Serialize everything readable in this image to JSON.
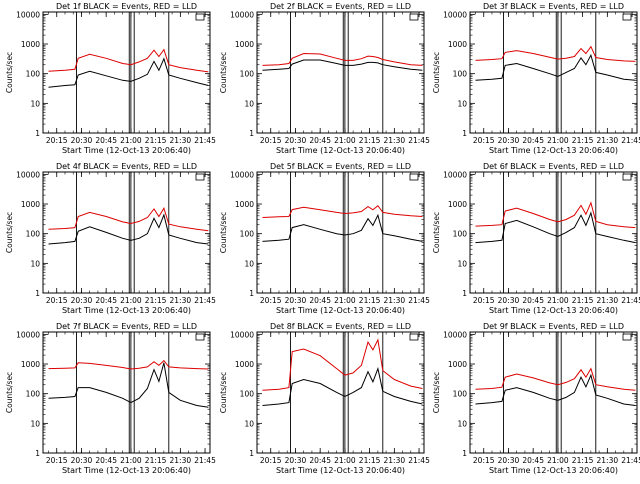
{
  "figure": {
    "panel_titles": [
      "Det 1f BLACK = Events, RED = LLD",
      "Det 2f BLACK = Events, RED = LLD",
      "Det 3f BLACK = Events, RED = LLD",
      "Det 4f BLACK = Events, RED = LLD",
      "Det 5f BLACK = Events, RED = LLD",
      "Det 6f BLACK = Events, RED = LLD",
      "Det 7f BLACK = Events, RED = LLD",
      "Det 8f BLACK = Events, RED = LLD",
      "Det 9f BLACK = Events, RED = LLD"
    ],
    "xlabel": "Start Time (12-Oct-13 20:06:40)",
    "ylabel": "Counts/sec",
    "colors": {
      "events": "#000000",
      "lld": "#dd0000",
      "axes": "#000000",
      "background": "#ffffff"
    }
  },
  "chart_data": {
    "type": "line",
    "yscale": "log",
    "xlabel": "Start Time (12-Oct-13 20:06:40)",
    "ylabel": "Counts/sec",
    "x_ticks": [
      "20:15",
      "20:30",
      "20:45",
      "21:00",
      "21:15",
      "21:30",
      "21:45"
    ],
    "y_ticks": [
      "1",
      "10",
      "100",
      "1000",
      "10000"
    ],
    "ylim": [
      1,
      12000
    ],
    "xlim": [
      "20:06:40",
      "21:48:00"
    ],
    "vertical_lines": [
      "20:27",
      "20:59",
      "21:00",
      "21:02",
      "21:23"
    ],
    "x": [
      "20:10",
      "20:20",
      "20:26",
      "20:28",
      "20:35",
      "20:45",
      "20:55",
      "21:00",
      "21:05",
      "21:10",
      "21:14",
      "21:17",
      "21:20",
      "21:23",
      "21:30",
      "21:40",
      "21:47"
    ],
    "panels": [
      {
        "title": "Det 1f BLACK = Events, RED = LLD",
        "series": [
          {
            "name": "BLACK = Events",
            "values": [
              35,
              40,
              42,
              90,
              120,
              85,
              60,
              55,
              70,
              95,
              260,
              130,
              320,
              90,
              70,
              50,
              40
            ]
          },
          {
            "name": "RED = LLD",
            "values": [
              120,
              130,
              140,
              330,
              450,
              330,
              220,
              200,
              250,
              330,
              620,
              380,
              650,
              200,
              160,
              130,
              115
            ]
          }
        ]
      },
      {
        "title": "Det 2f BLACK = Events, RED = LLD",
        "series": [
          {
            "name": "BLACK = Events",
            "values": [
              130,
              140,
              150,
              210,
              290,
              290,
              220,
              190,
              190,
              210,
              240,
              240,
              230,
              200,
              170,
              140,
              130
            ]
          },
          {
            "name": "RED = LLD",
            "values": [
              190,
              200,
              220,
              330,
              480,
              460,
              330,
              280,
              280,
              320,
              390,
              380,
              350,
              300,
              250,
              200,
              190
            ]
          }
        ]
      },
      {
        "title": "Det 3f BLACK = Events, RED = LLD",
        "series": [
          {
            "name": "BLACK = Events",
            "values": [
              60,
              65,
              70,
              190,
              220,
              150,
              100,
              80,
              110,
              150,
              340,
              200,
              420,
              110,
              90,
              65,
              60
            ]
          },
          {
            "name": "RED = LLD",
            "values": [
              280,
              300,
              320,
              520,
              600,
              480,
              360,
              310,
              330,
              380,
              700,
              480,
              820,
              350,
              300,
              270,
              260
            ]
          }
        ]
      },
      {
        "title": "Det 4f BLACK = Events, RED = LLD",
        "series": [
          {
            "name": "BLACK = Events",
            "values": [
              45,
              50,
              55,
              120,
              170,
              110,
              70,
              60,
              70,
              100,
              330,
              160,
              430,
              90,
              70,
              50,
              45
            ]
          },
          {
            "name": "RED = LLD",
            "values": [
              140,
              150,
              160,
              380,
              520,
              380,
              250,
              220,
              260,
              350,
              680,
              380,
              720,
              210,
              170,
              140,
              125
            ]
          }
        ]
      },
      {
        "title": "Det 5f BLACK = Events, RED = LLD",
        "series": [
          {
            "name": "BLACK = Events",
            "values": [
              55,
              60,
              65,
              160,
              200,
              140,
              100,
              90,
              100,
              130,
              320,
              190,
              420,
              100,
              85,
              65,
              55
            ]
          },
          {
            "name": "RED = LLD",
            "values": [
              350,
              370,
              380,
              650,
              780,
              640,
              520,
              480,
              500,
              560,
              820,
              640,
              880,
              520,
              450,
              400,
              380
            ]
          }
        ]
      },
      {
        "title": "Det 6f BLACK = Events, RED = LLD",
        "series": [
          {
            "name": "BLACK = Events",
            "values": [
              50,
              55,
              60,
              220,
              280,
              170,
              100,
              80,
              110,
              160,
              420,
              190,
              500,
              100,
              80,
              60,
              50
            ]
          },
          {
            "name": "RED = LLD",
            "values": [
              180,
              190,
              200,
              580,
              720,
              480,
              300,
              250,
              300,
              420,
              900,
              450,
              1100,
              260,
              200,
              170,
              160
            ]
          }
        ]
      },
      {
        "title": "Det 7f BLACK = Events, RED = LLD",
        "series": [
          {
            "name": "BLACK = Events",
            "values": [
              70,
              75,
              80,
              160,
              160,
              110,
              70,
              50,
              70,
              150,
              650,
              260,
              1100,
              110,
              60,
              40,
              35
            ]
          },
          {
            "name": "RED = LLD",
            "values": [
              700,
              720,
              740,
              1100,
              1050,
              900,
              760,
              680,
              720,
              800,
              1200,
              900,
              1300,
              800,
              740,
              700,
              680
            ]
          }
        ]
      },
      {
        "title": "Det 8f BLACK = Events, RED = LLD",
        "series": [
          {
            "name": "BLACK = Events",
            "values": [
              40,
              45,
              50,
              220,
              300,
              220,
              110,
              80,
              110,
              160,
              550,
              250,
              700,
              120,
              80,
              55,
              45
            ]
          },
          {
            "name": "RED = LLD",
            "values": [
              130,
              140,
              160,
              2600,
              3200,
              1900,
              700,
              420,
              500,
              900,
              5500,
              3000,
              6500,
              600,
              300,
              180,
              150
            ]
          }
        ]
      },
      {
        "title": "Det 9f BLACK = Events, RED = LLD",
        "series": [
          {
            "name": "BLACK = Events",
            "values": [
              45,
              50,
              55,
              130,
              160,
              110,
              70,
              60,
              75,
              110,
              360,
              170,
              420,
              90,
              70,
              45,
              40
            ]
          },
          {
            "name": "RED = LLD",
            "values": [
              140,
              150,
              165,
              360,
              460,
              340,
              230,
              200,
              240,
              320,
              640,
              360,
              700,
              200,
              170,
              140,
              130
            ]
          }
        ]
      }
    ]
  }
}
